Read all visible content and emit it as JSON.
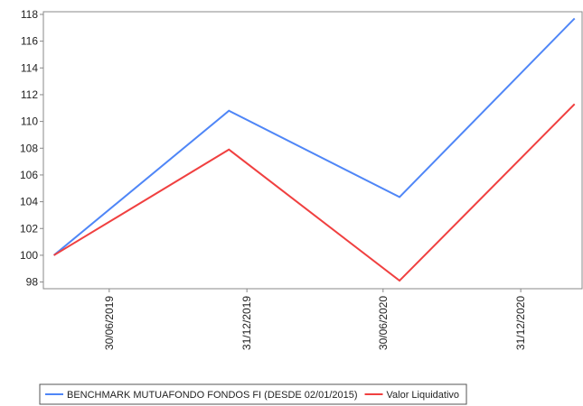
{
  "chart_data": {
    "type": "line",
    "x": [
      "2019-04-17",
      "2019-12-07",
      "2020-07-22",
      "2021-03-13"
    ],
    "xlim": [
      "2019-04-03",
      "2021-03-23"
    ],
    "xticks": [
      {
        "value": "2019-06-30",
        "label": "30/06/2019"
      },
      {
        "value": "2019-12-31",
        "label": "31/12/2019"
      },
      {
        "value": "2020-06-30",
        "label": "30/06/2020"
      },
      {
        "value": "2020-12-31",
        "label": "31/12/2020"
      }
    ],
    "ylim": [
      97.5,
      118.2
    ],
    "yticks": [
      98,
      100,
      102,
      104,
      106,
      108,
      110,
      112,
      114,
      116,
      118
    ],
    "series": [
      {
        "name": "BENCHMARK MUTUAFONDO FONDOS FI (DESDE 02/01/2015)",
        "color": "#4f86f7",
        "values": [
          100,
          110.8,
          104.35,
          117.7
        ]
      },
      {
        "name": "Valor Liquidativo",
        "color": "#f04040",
        "values": [
          100,
          107.9,
          98.1,
          111.3
        ]
      }
    ]
  }
}
